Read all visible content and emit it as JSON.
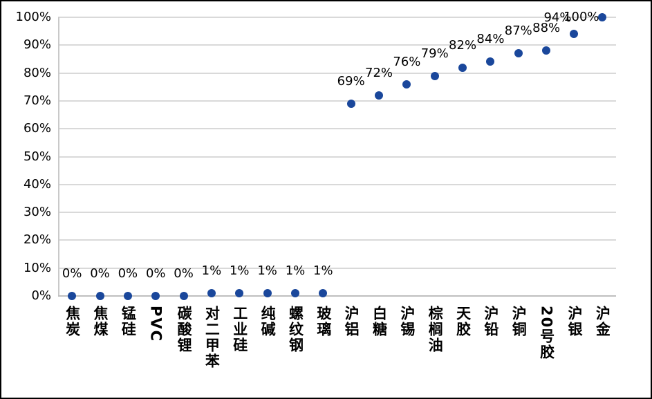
{
  "chart": {
    "background_color": "#FFFFFF",
    "border_color": "#000000",
    "gridline_color": "#D9D9D9",
    "axis_color": "#BFBFBF",
    "text_color": "#000000",
    "marker_color": "#1A479B"
  },
  "chart_data": {
    "type": "scatter",
    "title": "",
    "xlabel": "",
    "ylabel": "",
    "legend": "none",
    "grid": "horizontal",
    "ylim": [
      0,
      100
    ],
    "y_tick_step": 10,
    "y_tick_labels": [
      "0%",
      "10%",
      "20%",
      "30%",
      "40%",
      "50%",
      "60%",
      "70%",
      "80%",
      "90%",
      "100%"
    ],
    "categories": [
      "焦炭",
      "焦煤",
      "锰硅",
      "PVC",
      "碳酸锂",
      "对二甲苯",
      "工业硅",
      "纯碱",
      "螺纹钢",
      "玻璃",
      "沪铝",
      "白糖",
      "沪锡",
      "棕榈油",
      "天胶",
      "沪铅",
      "沪铜",
      "20号胶",
      "沪银",
      "沪金"
    ],
    "values": [
      0,
      0,
      0,
      0,
      0,
      1,
      1,
      1,
      1,
      1,
      69,
      72,
      76,
      79,
      82,
      84,
      87,
      88,
      94,
      100
    ],
    "data_labels": [
      "0%",
      "0%",
      "0%",
      "0%",
      "0%",
      "1%",
      "1%",
      "1%",
      "1%",
      "1%",
      "69%",
      "72%",
      "76%",
      "79%",
      "82%",
      "84%",
      "87%",
      "88%",
      "94%",
      "100%"
    ]
  }
}
